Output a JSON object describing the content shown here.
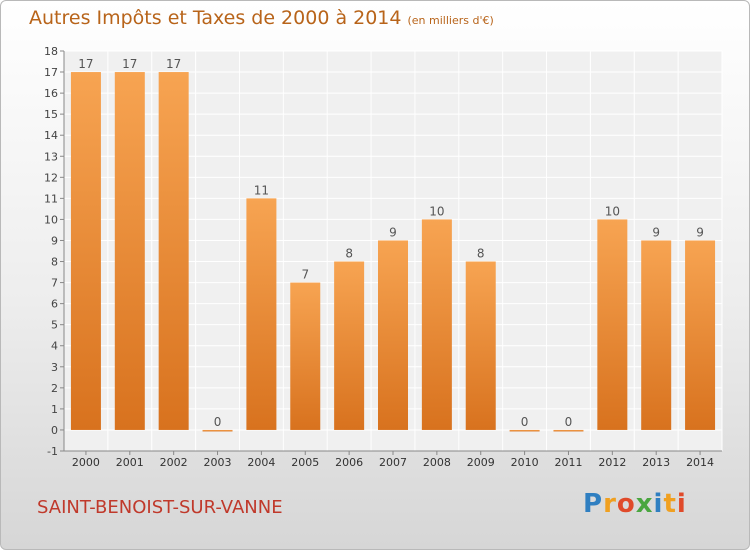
{
  "title": "Autres Impôts et Taxes de 2000 à 2014",
  "unit": "(en milliers d'€)",
  "commune": "SAINT-BENOIST-SUR-VANNE",
  "brand": "Proxiti",
  "colors": {
    "title": "#b8641a",
    "bar_light": "#f7a452",
    "bar_dark": "#d8721e",
    "commune": "#c0392b",
    "brand": [
      "#2f7fc1",
      "#f0a020",
      "#e04a2a",
      "#4aa640",
      "#2f7fc1",
      "#f0a020",
      "#e04a2a"
    ]
  },
  "chart_data": {
    "type": "bar",
    "title": "Autres Impôts et Taxes de 2000 à 2014",
    "categories": [
      "2000",
      "2001",
      "2002",
      "2003",
      "2004",
      "2005",
      "2006",
      "2007",
      "2008",
      "2009",
      "2010",
      "2011",
      "2012",
      "2013",
      "2014"
    ],
    "values": [
      17,
      17,
      17,
      0,
      11,
      7,
      8,
      9,
      10,
      8,
      0,
      0,
      10,
      9,
      9
    ],
    "ylim": [
      -1,
      18
    ],
    "yticks": [
      -1,
      0,
      1,
      2,
      3,
      4,
      5,
      6,
      7,
      8,
      9,
      10,
      11,
      12,
      13,
      14,
      15,
      16,
      17,
      18
    ],
    "grid": true,
    "data_labels": true
  }
}
